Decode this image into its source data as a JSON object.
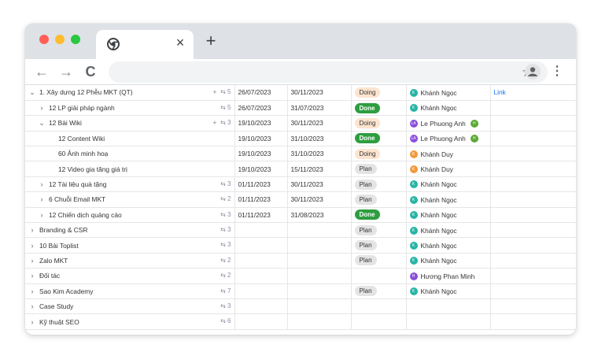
{
  "browser": {
    "tab_close": "×",
    "new_tab": "+",
    "back": "←",
    "forward": "→",
    "reload": "C",
    "star": "☆",
    "menu": "⋮"
  },
  "colors": {
    "teal": "#26b5a5",
    "purple": "#8a4fd8",
    "green": "#5aa832",
    "orange": "#f29a3a"
  },
  "rows": [
    {
      "indent": 0,
      "chev": "⌄",
      "name": "1. Xây dựng 12 Phễu MKT (QT)",
      "plus": "+",
      "sub": "⇆ 5",
      "start": "26/07/2023",
      "end": "30/11/2023",
      "status": "Doing",
      "status_class": "doing",
      "people": [
        {
          "name": "Khánh Ngọc",
          "color": "#26b5a5",
          "initial": "K"
        }
      ],
      "link": "Link"
    },
    {
      "indent": 1,
      "chev": "›",
      "name": "12 LP giải pháp ngành",
      "plus": "",
      "sub": "⇆ 5",
      "start": "26/07/2023",
      "end": "31/07/2023",
      "status": "Done",
      "status_class": "done",
      "people": [
        {
          "name": "Khánh Ngọc",
          "color": "#26b5a5",
          "initial": "K"
        }
      ],
      "link": ""
    },
    {
      "indent": 1,
      "chev": "⌄",
      "name": "12 Bài Wiki",
      "plus": "+",
      "sub": "⇆ 3",
      "start": "19/10/2023",
      "end": "30/11/2023",
      "status": "Doing",
      "status_class": "doing",
      "people": [
        {
          "name": "Le Phuong Anh",
          "color": "#8a4fd8",
          "initial": "LA"
        },
        {
          "name": "",
          "color": "#5aa832",
          "initial": "H"
        }
      ],
      "link": ""
    },
    {
      "indent": 2,
      "chev": "",
      "name": "12 Content Wiki",
      "plus": "",
      "sub": "",
      "start": "19/10/2023",
      "end": "31/10/2023",
      "status": "Done",
      "status_class": "done",
      "people": [
        {
          "name": "Le Phuong Anh",
          "color": "#8a4fd8",
          "initial": "LA"
        },
        {
          "name": "",
          "color": "#5aa832",
          "initial": "H"
        }
      ],
      "link": ""
    },
    {
      "indent": 2,
      "chev": "",
      "name": "60 Ảnh minh hoạ",
      "plus": "",
      "sub": "",
      "start": "19/10/2023",
      "end": "31/10/2023",
      "status": "Doing",
      "status_class": "doing",
      "people": [
        {
          "name": "Khánh Duy",
          "color": "#f29a3a",
          "initial": "K"
        }
      ],
      "link": ""
    },
    {
      "indent": 2,
      "chev": "",
      "name": "12 Video gia tăng giá trị",
      "plus": "",
      "sub": "",
      "start": "19/10/2023",
      "end": "15/11/2023",
      "status": "Plan",
      "status_class": "plan",
      "people": [
        {
          "name": "Khánh Duy",
          "color": "#f29a3a",
          "initial": "K"
        }
      ],
      "link": ""
    },
    {
      "indent": 1,
      "chev": "›",
      "name": "12 Tài liệu quà tặng",
      "plus": "",
      "sub": "⇆ 3",
      "start": "01/11/2023",
      "end": "30/11/2023",
      "status": "Plan",
      "status_class": "plan",
      "people": [
        {
          "name": "Khánh Ngọc",
          "color": "#26b5a5",
          "initial": "K"
        }
      ],
      "link": ""
    },
    {
      "indent": 1,
      "chev": "›",
      "name": "6 Chuỗi Email MKT",
      "plus": "",
      "sub": "⇆ 2",
      "start": "01/11/2023",
      "end": "30/11/2023",
      "status": "Plan",
      "status_class": "plan",
      "people": [
        {
          "name": "Khánh Ngọc",
          "color": "#26b5a5",
          "initial": "K"
        }
      ],
      "link": ""
    },
    {
      "indent": 1,
      "chev": "›",
      "name": "12 Chiến dịch quảng cáo",
      "plus": "",
      "sub": "⇆ 3",
      "start": "01/11/2023",
      "end": "31/08/2023",
      "status": "Done",
      "status_class": "done",
      "people": [
        {
          "name": "Khánh Ngọc",
          "color": "#26b5a5",
          "initial": "K"
        }
      ],
      "link": ""
    },
    {
      "indent": 0,
      "chev": "›",
      "name": "Branding & CSR",
      "plus": "",
      "sub": "⇆ 3",
      "start": "",
      "end": "",
      "status": "Plan",
      "status_class": "plan",
      "people": [
        {
          "name": "Khánh Ngọc",
          "color": "#26b5a5",
          "initial": "K"
        }
      ],
      "link": ""
    },
    {
      "indent": 0,
      "chev": "›",
      "name": "10 Bài Toplist",
      "plus": "",
      "sub": "⇆ 3",
      "start": "",
      "end": "",
      "status": "Plan",
      "status_class": "plan",
      "people": [
        {
          "name": "Khánh Ngọc",
          "color": "#26b5a5",
          "initial": "K"
        }
      ],
      "link": ""
    },
    {
      "indent": 0,
      "chev": "›",
      "name": "Zalo MKT",
      "plus": "",
      "sub": "⇆ 2",
      "start": "",
      "end": "",
      "status": "Plan",
      "status_class": "plan",
      "people": [
        {
          "name": "Khánh Ngọc",
          "color": "#26b5a5",
          "initial": "K"
        }
      ],
      "link": ""
    },
    {
      "indent": 0,
      "chev": "›",
      "name": "Đối tác",
      "plus": "",
      "sub": "⇆ 2",
      "start": "",
      "end": "",
      "status": "",
      "status_class": "",
      "people": [
        {
          "name": "Hương Phan Minh",
          "color": "#8a4fd8",
          "initial": "H"
        }
      ],
      "link": ""
    },
    {
      "indent": 0,
      "chev": "›",
      "name": "Sao Kim Academy",
      "plus": "",
      "sub": "⇆ 7",
      "start": "",
      "end": "",
      "status": "Plan",
      "status_class": "plan",
      "people": [
        {
          "name": "Khánh Ngọc",
          "color": "#26b5a5",
          "initial": "K"
        }
      ],
      "link": ""
    },
    {
      "indent": 0,
      "chev": "›",
      "name": "Case Study",
      "plus": "",
      "sub": "⇆ 3",
      "start": "",
      "end": "",
      "status": "",
      "status_class": "",
      "people": [],
      "link": ""
    },
    {
      "indent": 0,
      "chev": "›",
      "name": "Kỹ thuật SEO",
      "plus": "",
      "sub": "⇆ 6",
      "start": "",
      "end": "",
      "status": "",
      "status_class": "",
      "people": [],
      "link": ""
    }
  ]
}
